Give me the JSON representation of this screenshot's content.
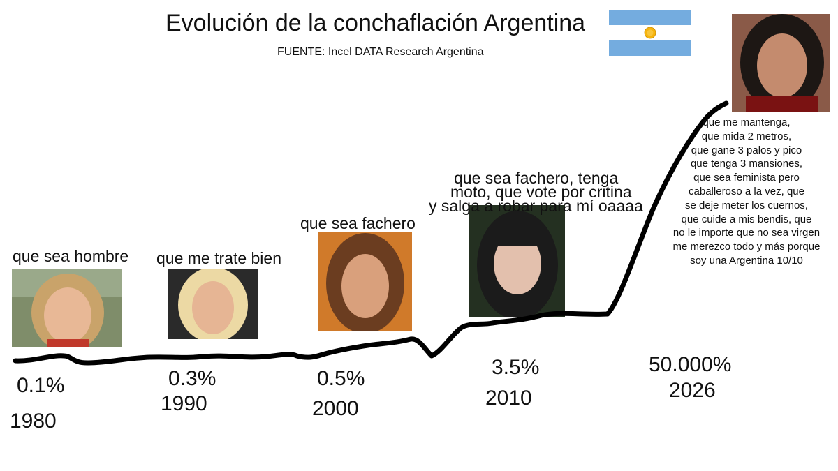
{
  "title": "Evolución de la conchaflación Argentina",
  "subtitle": "FUENTE: Incel DATA Research Argentina",
  "colors": {
    "curve": "#000000",
    "flag_blue": "#74acdf",
    "flag_white": "#ffffff",
    "sun": "#f6b40e"
  },
  "chart_data": {
    "type": "line",
    "title": "Evolución de la conchaflación Argentina",
    "x": [
      "1980",
      "1990",
      "2000",
      "2010",
      "2026"
    ],
    "values": [
      0.1,
      0.3,
      0.5,
      3.5,
      50000
    ],
    "value_labels": [
      "0.1%",
      "0.3%",
      "0.5%",
      "3.5%",
      "50.000%"
    ],
    "captions": [
      "que sea hombre",
      "que me trate bien",
      "que sea fachero",
      "que sea fachero, tenga moto, que vote por critina y salga a robar para mí oaaaa",
      "que me mantenga, que mida 2 metros, que gane 3 palos y pico que tenga 3 mansiones, que sea feminista pero caballeroso a la vez, que se deje meter los cuernos, que cuide a mis bendis, que no le importe que no sea virgen me merezco todo y más porque soy una Argentina 10/10"
    ],
    "caption_lines_2010": [
      "que sea fachero, tenga",
      "moto, que vote por critina",
      "y salga a robar para mí oaaaa"
    ],
    "caption_lines_2026": [
      "que me mantenga,",
      "que mida 2 metros,",
      "que gane 3 palos y pico",
      "que tenga 3 mansiones,",
      "que sea feminista pero",
      "caballeroso a la vez, que",
      "se deje meter los cuernos,",
      "que cuide a mis bendis, que",
      "no le importe que no sea virgen",
      "me merezco todo y más porque",
      "soy una Argentina 10/10"
    ],
    "grid": false,
    "legend": "none"
  }
}
